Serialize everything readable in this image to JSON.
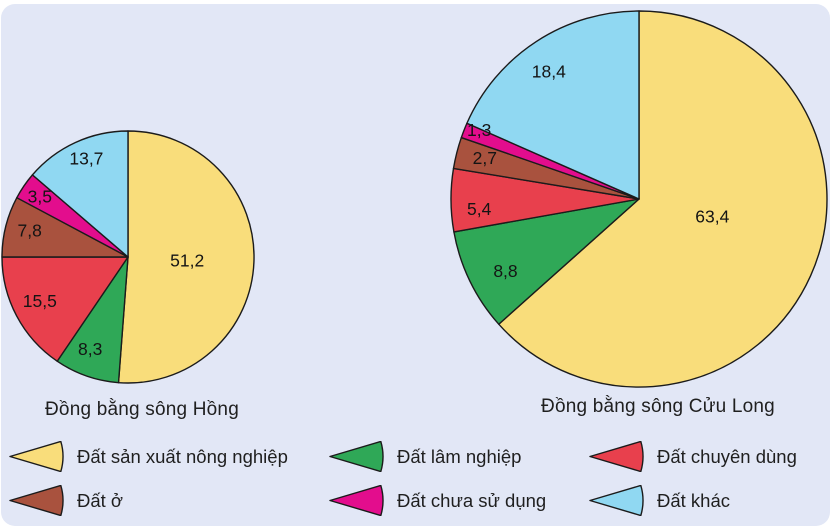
{
  "page": {
    "background_color": "#FFFFFF",
    "panel_color": "#E2E7F6",
    "outline_color": "#1B1B1B",
    "text_color": "#1F1F1F"
  },
  "chart_data": {
    "type": "pie",
    "legend_position": "bottom",
    "categories": [
      "Đất sản xuất nông nghiệp",
      "Đất lâm nghiệp",
      "Đất chuyên dùng",
      "Đất ở",
      "Đất chưa sử dụng",
      "Đất khác"
    ],
    "colors": [
      "#F9DD7B",
      "#2FA857",
      "#E8404D",
      "#A9523E",
      "#E30D8D",
      "#90D8F2"
    ],
    "series": [
      {
        "name": "Đồng bằng sông Hồng",
        "values": [
          51.2,
          8.3,
          15.5,
          7.8,
          3.5,
          13.7
        ],
        "labels": [
          "51,2",
          "8,3",
          "15,5",
          "7,8",
          "3,5",
          "13,7"
        ]
      },
      {
        "name": "Đồng bằng sông Cửu Long",
        "values": [
          63.4,
          8.8,
          5.4,
          2.7,
          1.3,
          18.4
        ],
        "labels": [
          "63,4",
          "8,8",
          "5,4",
          "2,7",
          "1,3",
          "18,4"
        ]
      }
    ]
  }
}
